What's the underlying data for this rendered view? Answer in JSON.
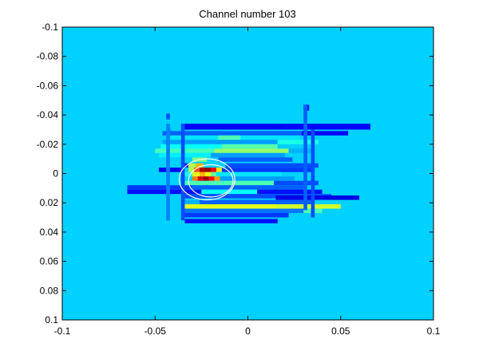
{
  "chart_data": {
    "type": "heatmap",
    "title": "Channel number 103",
    "xlabel": "",
    "ylabel": "",
    "xlim": [
      -0.1,
      0.1
    ],
    "ylim": [
      -0.1,
      0.1
    ],
    "y_reversed": true,
    "grid": false,
    "colormap": "jet",
    "x_ticks": [
      -0.1,
      -0.05,
      0,
      0.05,
      0.1
    ],
    "x_tick_labels": [
      "-0.1",
      "-0.05",
      "0",
      "0.05",
      "0.1"
    ],
    "y_ticks": [
      -0.1,
      -0.08,
      -0.06,
      -0.04,
      -0.02,
      0,
      0.02,
      0.04,
      0.06,
      0.08,
      0.1
    ],
    "y_tick_labels": [
      "-0.1",
      "-0.08",
      "-0.06",
      "-0.04",
      "-0.02",
      "0",
      "0.02",
      "0.04",
      "0.06",
      "0.08",
      "0.1"
    ],
    "background_level": 0.33,
    "cells": [
      {
        "x": -0.044,
        "y": -0.041,
        "w": 0.002,
        "h": 0.004,
        "v": 0.2
      },
      {
        "x": 0.03,
        "y": -0.047,
        "w": 0.003,
        "h": 0.004,
        "v": 0.15
      },
      {
        "x": -0.034,
        "y": -0.034,
        "w": 0.055,
        "h": 0.004,
        "v": 0.12
      },
      {
        "x": 0.018,
        "y": -0.034,
        "w": 0.048,
        "h": 0.004,
        "v": 0.13
      },
      {
        "x": -0.044,
        "y": -0.031,
        "w": 0.003,
        "h": 0.004,
        "v": 0.3
      },
      {
        "x": -0.046,
        "y": -0.029,
        "w": 0.075,
        "h": 0.003,
        "v": 0.22
      },
      {
        "x": 0.029,
        "y": -0.029,
        "w": 0.025,
        "h": 0.003,
        "v": 0.12
      },
      {
        "x": -0.042,
        "y": -0.026,
        "w": 0.07,
        "h": 0.003,
        "v": 0.35
      },
      {
        "x": -0.016,
        "y": -0.026,
        "w": 0.012,
        "h": 0.003,
        "v": 0.45
      },
      {
        "x": -0.046,
        "y": -0.023,
        "w": 0.062,
        "h": 0.003,
        "v": 0.28
      },
      {
        "x": 0.016,
        "y": -0.023,
        "w": 0.022,
        "h": 0.003,
        "v": 0.4
      },
      {
        "x": -0.047,
        "y": -0.02,
        "w": 0.052,
        "h": 0.003,
        "v": 0.38
      },
      {
        "x": -0.014,
        "y": -0.02,
        "w": 0.03,
        "h": 0.003,
        "v": 0.46
      },
      {
        "x": -0.05,
        "y": -0.017,
        "w": 0.032,
        "h": 0.003,
        "v": 0.44
      },
      {
        "x": -0.018,
        "y": -0.017,
        "w": 0.04,
        "h": 0.003,
        "v": 0.52
      },
      {
        "x": 0.022,
        "y": -0.017,
        "w": 0.012,
        "h": 0.003,
        "v": 0.3
      },
      {
        "x": -0.048,
        "y": -0.014,
        "w": 0.028,
        "h": 0.003,
        "v": 0.36
      },
      {
        "x": -0.02,
        "y": -0.014,
        "w": 0.04,
        "h": 0.003,
        "v": 0.28
      },
      {
        "x": -0.03,
        "y": -0.011,
        "w": 0.008,
        "h": 0.003,
        "v": 0.5
      },
      {
        "x": -0.016,
        "y": -0.011,
        "w": 0.04,
        "h": 0.003,
        "v": 0.22
      },
      {
        "x": -0.036,
        "y": -0.007,
        "w": 0.004,
        "h": 0.003,
        "v": 0.15
      },
      {
        "x": -0.032,
        "y": -0.007,
        "w": 0.004,
        "h": 0.003,
        "v": 0.55
      },
      {
        "x": -0.028,
        "y": -0.007,
        "w": 0.004,
        "h": 0.003,
        "v": 0.7
      },
      {
        "x": -0.012,
        "y": -0.007,
        "w": 0.05,
        "h": 0.003,
        "v": 0.2
      },
      {
        "x": -0.048,
        "y": -0.004,
        "w": 0.012,
        "h": 0.003,
        "v": 0.12
      },
      {
        "x": -0.032,
        "y": -0.004,
        "w": 0.003,
        "h": 0.003,
        "v": 0.55
      },
      {
        "x": -0.029,
        "y": -0.004,
        "w": 0.003,
        "h": 0.003,
        "v": 0.8
      },
      {
        "x": -0.026,
        "y": -0.004,
        "w": 0.003,
        "h": 0.003,
        "v": 0.95
      },
      {
        "x": -0.023,
        "y": -0.004,
        "w": 0.003,
        "h": 0.003,
        "v": 0.98
      },
      {
        "x": -0.02,
        "y": -0.004,
        "w": 0.003,
        "h": 0.003,
        "v": 0.88
      },
      {
        "x": -0.017,
        "y": -0.004,
        "w": 0.003,
        "h": 0.003,
        "v": 0.65
      },
      {
        "x": -0.014,
        "y": -0.004,
        "w": 0.05,
        "h": 0.003,
        "v": 0.18
      },
      {
        "x": -0.034,
        "y": -0.001,
        "w": 0.004,
        "h": 0.003,
        "v": 0.4
      },
      {
        "x": -0.03,
        "y": -0.001,
        "w": 0.004,
        "h": 0.003,
        "v": 0.6
      },
      {
        "x": -0.026,
        "y": -0.001,
        "w": 0.003,
        "h": 0.003,
        "v": 0.7
      },
      {
        "x": -0.023,
        "y": -0.001,
        "w": 0.003,
        "h": 0.003,
        "v": 0.62
      },
      {
        "x": -0.02,
        "y": -0.001,
        "w": 0.003,
        "h": 0.003,
        "v": 0.48
      },
      {
        "x": -0.017,
        "y": -0.001,
        "w": 0.035,
        "h": 0.003,
        "v": 0.35
      },
      {
        "x": -0.03,
        "y": 0.002,
        "w": 0.003,
        "h": 0.003,
        "v": 0.75
      },
      {
        "x": -0.027,
        "y": 0.002,
        "w": 0.003,
        "h": 0.003,
        "v": 0.9
      },
      {
        "x": -0.024,
        "y": 0.002,
        "w": 0.003,
        "h": 0.003,
        "v": 0.96
      },
      {
        "x": -0.021,
        "y": 0.002,
        "w": 0.003,
        "h": 0.003,
        "v": 0.86
      },
      {
        "x": -0.018,
        "y": 0.002,
        "w": 0.003,
        "h": 0.003,
        "v": 0.72
      },
      {
        "x": -0.015,
        "y": 0.002,
        "w": 0.04,
        "h": 0.003,
        "v": 0.28
      },
      {
        "x": -0.036,
        "y": 0.005,
        "w": 0.05,
        "h": 0.003,
        "v": 0.45
      },
      {
        "x": 0.014,
        "y": 0.005,
        "w": 0.024,
        "h": 0.003,
        "v": 0.2
      },
      {
        "x": -0.065,
        "y": 0.008,
        "w": 0.035,
        "h": 0.003,
        "v": 0.18
      },
      {
        "x": -0.03,
        "y": 0.008,
        "w": 0.06,
        "h": 0.003,
        "v": 0.22
      },
      {
        "x": -0.065,
        "y": 0.011,
        "w": 0.04,
        "h": 0.003,
        "v": 0.14
      },
      {
        "x": -0.025,
        "y": 0.011,
        "w": 0.03,
        "h": 0.003,
        "v": 0.38
      },
      {
        "x": 0.005,
        "y": 0.011,
        "w": 0.035,
        "h": 0.003,
        "v": 0.14
      },
      {
        "x": -0.035,
        "y": 0.014,
        "w": 0.08,
        "h": 0.003,
        "v": 0.2
      },
      {
        "x": 0.015,
        "y": 0.015,
        "w": 0.045,
        "h": 0.003,
        "v": 0.1
      },
      {
        "x": -0.036,
        "y": 0.018,
        "w": 0.01,
        "h": 0.003,
        "v": 0.3
      },
      {
        "x": -0.026,
        "y": 0.018,
        "w": 0.06,
        "h": 0.003,
        "v": 0.22
      },
      {
        "x": -0.034,
        "y": 0.021,
        "w": 0.05,
        "h": 0.003,
        "v": 0.6
      },
      {
        "x": 0.016,
        "y": 0.021,
        "w": 0.034,
        "h": 0.003,
        "v": 0.58
      },
      {
        "x": -0.036,
        "y": 0.024,
        "w": 0.07,
        "h": 0.003,
        "v": 0.24
      },
      {
        "x": 0.03,
        "y": 0.024,
        "w": 0.01,
        "h": 0.003,
        "v": 0.45
      },
      {
        "x": -0.034,
        "y": 0.027,
        "w": 0.056,
        "h": 0.003,
        "v": 0.18
      },
      {
        "x": -0.034,
        "y": 0.031,
        "w": 0.05,
        "h": 0.003,
        "v": 0.14
      },
      {
        "x": -0.044,
        "y": -0.034,
        "w": 0.002,
        "h": 0.066,
        "v": 0.25
      },
      {
        "x": -0.036,
        "y": -0.034,
        "w": 0.002,
        "h": 0.066,
        "v": 0.2
      },
      {
        "x": 0.03,
        "y": -0.047,
        "w": 0.002,
        "h": 0.072,
        "v": 0.22
      },
      {
        "x": 0.034,
        "y": -0.03,
        "w": 0.002,
        "h": 0.06,
        "v": 0.2
      }
    ],
    "contours": [
      {
        "cx": -0.022,
        "cy": 0.004,
        "rx": 0.015,
        "ry": 0.014,
        "color": "#ffffff"
      },
      {
        "cx": -0.02,
        "cy": 0.005,
        "rx": 0.012,
        "ry": 0.011,
        "color": "#ffffff"
      }
    ]
  }
}
